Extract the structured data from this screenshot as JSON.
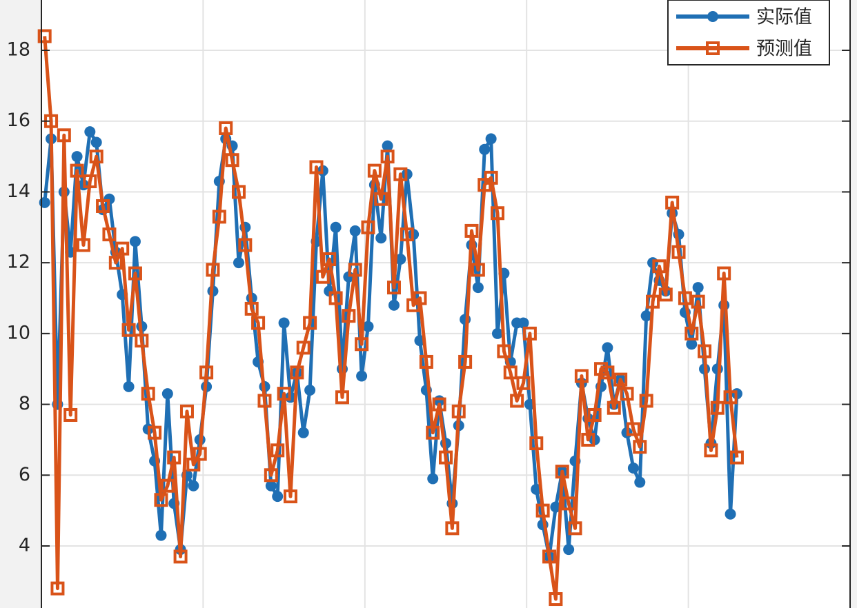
{
  "chart_data": {
    "type": "line",
    "x": [
      1,
      3,
      5,
      7,
      9,
      11,
      13,
      15,
      17,
      19,
      21,
      23,
      25,
      27,
      29,
      31,
      33,
      35,
      37,
      39,
      41,
      43,
      45,
      47,
      49,
      51,
      53,
      55,
      57,
      59,
      61,
      63,
      65,
      67,
      69,
      71,
      73,
      75,
      77,
      79,
      81,
      83,
      85,
      87,
      89,
      91,
      93,
      95,
      97,
      99,
      101,
      103,
      105,
      107,
      109,
      111,
      113,
      115,
      117,
      119,
      121,
      123,
      125,
      127,
      129,
      131,
      133,
      135,
      137,
      139,
      141,
      143,
      145,
      147,
      149,
      151,
      153,
      155,
      157,
      159,
      161,
      163,
      165,
      167,
      169,
      171,
      173,
      175,
      177,
      179,
      181,
      183,
      185,
      187,
      189,
      191,
      193,
      195,
      197,
      199,
      201,
      203,
      205,
      207,
      209,
      211,
      213,
      215
    ],
    "series": [
      {
        "name": "实际值",
        "color": "#1f6fb4",
        "marker": "circle",
        "values": [
          13.7,
          15.5,
          8.0,
          14.0,
          12.3,
          15.0,
          14.2,
          15.7,
          15.4,
          13.5,
          13.8,
          12.3,
          11.1,
          8.5,
          12.6,
          10.2,
          7.3,
          6.4,
          4.3,
          8.3,
          5.2,
          3.9,
          6.0,
          5.7,
          7.0,
          8.5,
          11.2,
          14.3,
          15.5,
          15.3,
          12.0,
          13.0,
          11.0,
          9.2,
          8.5,
          5.7,
          5.4,
          10.3,
          8.2,
          8.9,
          7.2,
          8.4,
          12.6,
          14.6,
          11.2,
          13.0,
          9.0,
          11.6,
          12.9,
          8.8,
          10.2,
          14.2,
          12.7,
          15.3,
          10.8,
          12.1,
          14.5,
          12.8,
          9.8,
          8.4,
          5.9,
          8.1,
          6.9,
          5.2,
          7.4,
          10.4,
          12.5,
          11.3,
          15.2,
          15.5,
          10.0,
          11.7,
          9.2,
          10.3,
          10.3,
          8.0,
          5.6,
          4.6,
          3.7,
          5.1,
          6.1,
          3.9,
          6.4,
          8.6,
          7.6,
          7.0,
          8.5,
          9.6,
          8.0,
          8.7,
          7.2,
          6.2,
          5.8,
          10.5,
          12.0,
          11.5,
          11.2,
          13.4,
          12.8,
          10.6,
          9.7,
          11.3,
          9.0,
          6.9,
          9.0,
          10.8,
          4.9,
          8.3
        ]
      },
      {
        "name": "预测值",
        "color": "#d95319",
        "marker": "square",
        "values": [
          18.4,
          16.0,
          2.8,
          15.6,
          7.7,
          14.6,
          12.5,
          14.3,
          15.0,
          13.6,
          12.8,
          12.0,
          12.4,
          10.1,
          11.7,
          9.8,
          8.3,
          7.2,
          5.3,
          5.7,
          6.5,
          3.7,
          7.8,
          6.3,
          6.6,
          8.9,
          11.8,
          13.3,
          15.8,
          14.9,
          14.0,
          12.5,
          10.7,
          10.3,
          8.1,
          6.0,
          6.7,
          8.3,
          5.4,
          8.9,
          9.6,
          10.3,
          14.7,
          11.6,
          12.1,
          11.0,
          8.2,
          10.5,
          11.8,
          9.7,
          13.0,
          14.6,
          13.8,
          15.0,
          11.3,
          14.5,
          12.8,
          10.8,
          11.0,
          9.2,
          7.2,
          8.0,
          6.5,
          4.5,
          7.8,
          9.2,
          12.9,
          11.8,
          14.2,
          14.4,
          13.4,
          9.5,
          8.9,
          8.1,
          8.6,
          10.0,
          6.9,
          5.0,
          3.7,
          2.5,
          6.1,
          5.2,
          4.5,
          8.8,
          7.0,
          7.7,
          9.0,
          8.9,
          7.9,
          8.7,
          8.3,
          7.3,
          6.8,
          8.1,
          10.9,
          11.9,
          11.1,
          13.7,
          12.3,
          11.0,
          10.0,
          10.9,
          9.5,
          6.7,
          7.9,
          11.7,
          8.2,
          6.5
        ]
      }
    ],
    "xlim": [
      0,
      250
    ],
    "xticks": [
      0,
      50,
      100,
      150,
      200,
      250
    ],
    "ylim": [
      2,
      20
    ],
    "yticks": [
      4,
      6,
      8,
      10,
      12,
      14,
      16,
      18
    ],
    "grid": true,
    "legend": "top-right"
  }
}
